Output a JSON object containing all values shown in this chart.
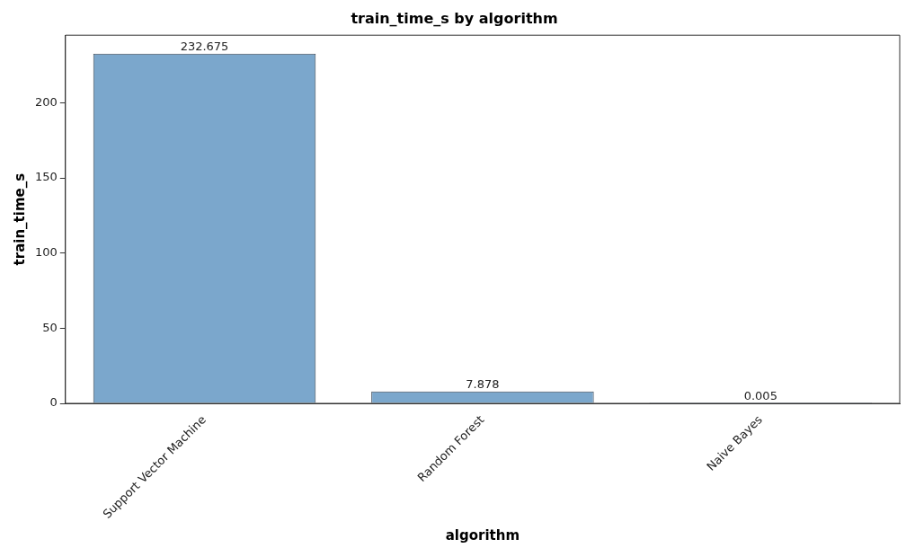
{
  "chart_data": {
    "type": "bar",
    "title": "train_time_s by algorithm",
    "xlabel": "algorithm",
    "ylabel": "train_time_s",
    "categories": [
      "Support Vector Machine",
      "Random Forest",
      "Naive Bayes"
    ],
    "values": [
      232.675,
      7.878,
      0.005
    ],
    "color": "#7ba7cc",
    "ylim": [
      0,
      245
    ],
    "yticks": [
      0,
      50,
      100,
      150,
      200
    ],
    "grid": false,
    "legend": false,
    "data_labels": true
  }
}
